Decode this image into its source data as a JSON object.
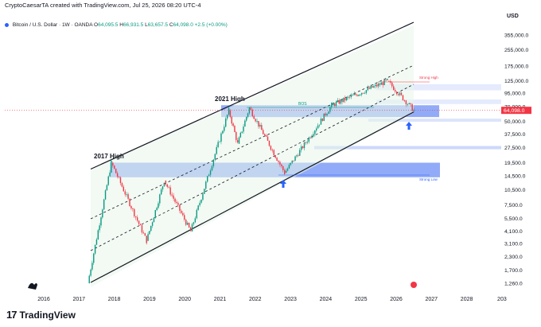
{
  "header": {
    "created_by": "CryptoCaesarTA created with TradingView.com, Jul 25, 2026 08:20 UTC-4",
    "symbol": "Bitcoin / U.S. Dollar · 1W · OANDA",
    "ohlc": {
      "o_label": "O",
      "o": "64,095.5",
      "h_label": "H",
      "h": "66,931.5",
      "l_label": "L",
      "l": "63,657.5",
      "c_label": "C",
      "c": "64,098.0",
      "change": "+2.5 (+0.00%)"
    }
  },
  "price_axis": {
    "currency": "USD",
    "labels": [
      "355,000.0",
      "255,000.0",
      "175,000.0",
      "125,000.0",
      "95,000.0",
      "70,000.0",
      "50,000.0",
      "37,500.0",
      "27,500.0",
      "19,500.0",
      "14,500.0",
      "10,500.0",
      "7,500.0",
      "5,500.0",
      "4,100.0",
      "3,100.0",
      "2,300.0",
      "1,700.0",
      "1,260.0"
    ],
    "current_price": "64,098.0"
  },
  "time_axis": {
    "labels": [
      "2016",
      "2017",
      "2018",
      "2019",
      "2020",
      "2021",
      "2022",
      "2023",
      "2024",
      "2025",
      "2026",
      "2027",
      "2028",
      "203"
    ]
  },
  "annotations": {
    "high_2017": "2017 High",
    "high_2021": "2021 High",
    "bos_top": "BOS",
    "strong_high": "Strong High",
    "strong_low": "Strong Low"
  },
  "chart_data": {
    "type": "candlestick",
    "scale": "log",
    "title": "",
    "xlabel": "",
    "ylabel": "",
    "approx_weekly_close_path": [
      {
        "x": "2017-04",
        "y": 1260
      },
      {
        "x": "2017-12",
        "y": 19500
      },
      {
        "x": "2018-12",
        "y": 3300
      },
      {
        "x": "2019-06",
        "y": 13000
      },
      {
        "x": "2020-03",
        "y": 4100
      },
      {
        "x": "2021-04",
        "y": 64000
      },
      {
        "x": "2021-07",
        "y": 30000
      },
      {
        "x": "2021-11",
        "y": 68000
      },
      {
        "x": "2022-11",
        "y": 15500
      },
      {
        "x": "2024-03",
        "y": 72000
      },
      {
        "x": "2025-10",
        "y": 125000
      },
      {
        "x": "2026-07",
        "y": 64098
      }
    ],
    "channel": "ascending log-regression channel",
    "supply_demand_zones": "2017/2021 highs range, current 60k-70k range, 27.5k level",
    "grid": false,
    "legend": "none"
  },
  "watermark": {
    "name": "TradingView"
  },
  "colors": {
    "up": "#089981",
    "down": "#f23645",
    "zone": "#6e8ff5",
    "channel": "#131722",
    "price_tag": "#f23645",
    "arrow": "#2962ff"
  }
}
